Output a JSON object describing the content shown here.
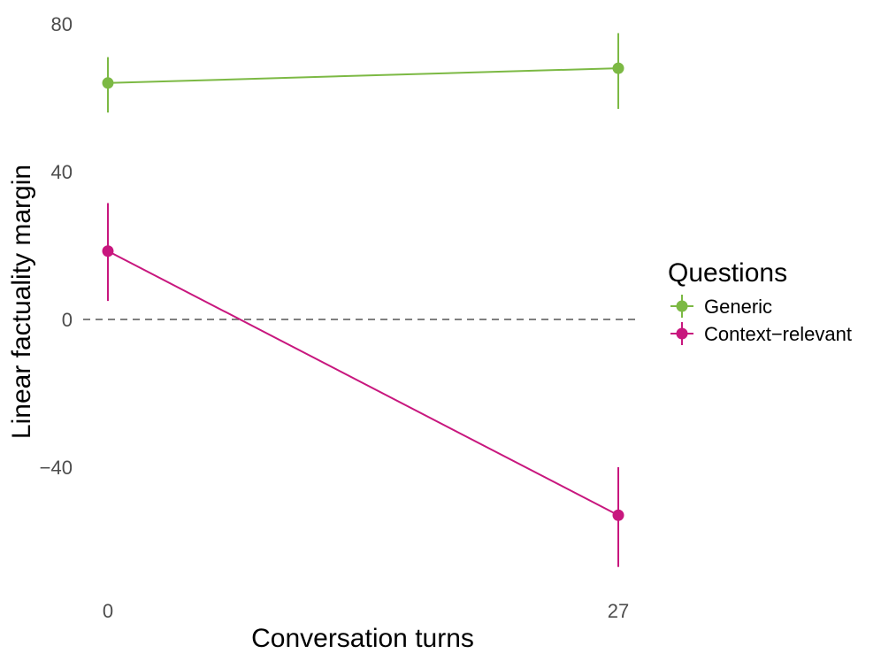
{
  "chart_data": {
    "type": "line",
    "xlabel": "Conversation turns",
    "ylabel": "Linear factuality margin",
    "x": [
      0,
      27
    ],
    "x_ticks": [
      "0",
      "27"
    ],
    "y_ticks": [
      "80",
      "40",
      "0",
      "−40"
    ],
    "y_tick_values": [
      80,
      40,
      0,
      -40
    ],
    "ylim": [
      -77,
      80
    ],
    "reference_line": {
      "y": 0,
      "style": "dashed",
      "color": "#808080"
    },
    "grid": false,
    "legend": {
      "title": "Questions",
      "position": "right"
    },
    "series": [
      {
        "name": "Generic",
        "color": "#7cb944",
        "values": [
          64,
          68
        ],
        "err_low": [
          56,
          57
        ],
        "err_high": [
          71,
          77.5
        ]
      },
      {
        "name": "Context−relevant",
        "color": "#c8177e",
        "values": [
          18.5,
          -53
        ],
        "err_low": [
          5,
          -67
        ],
        "err_high": [
          31.5,
          -40
        ]
      }
    ]
  }
}
